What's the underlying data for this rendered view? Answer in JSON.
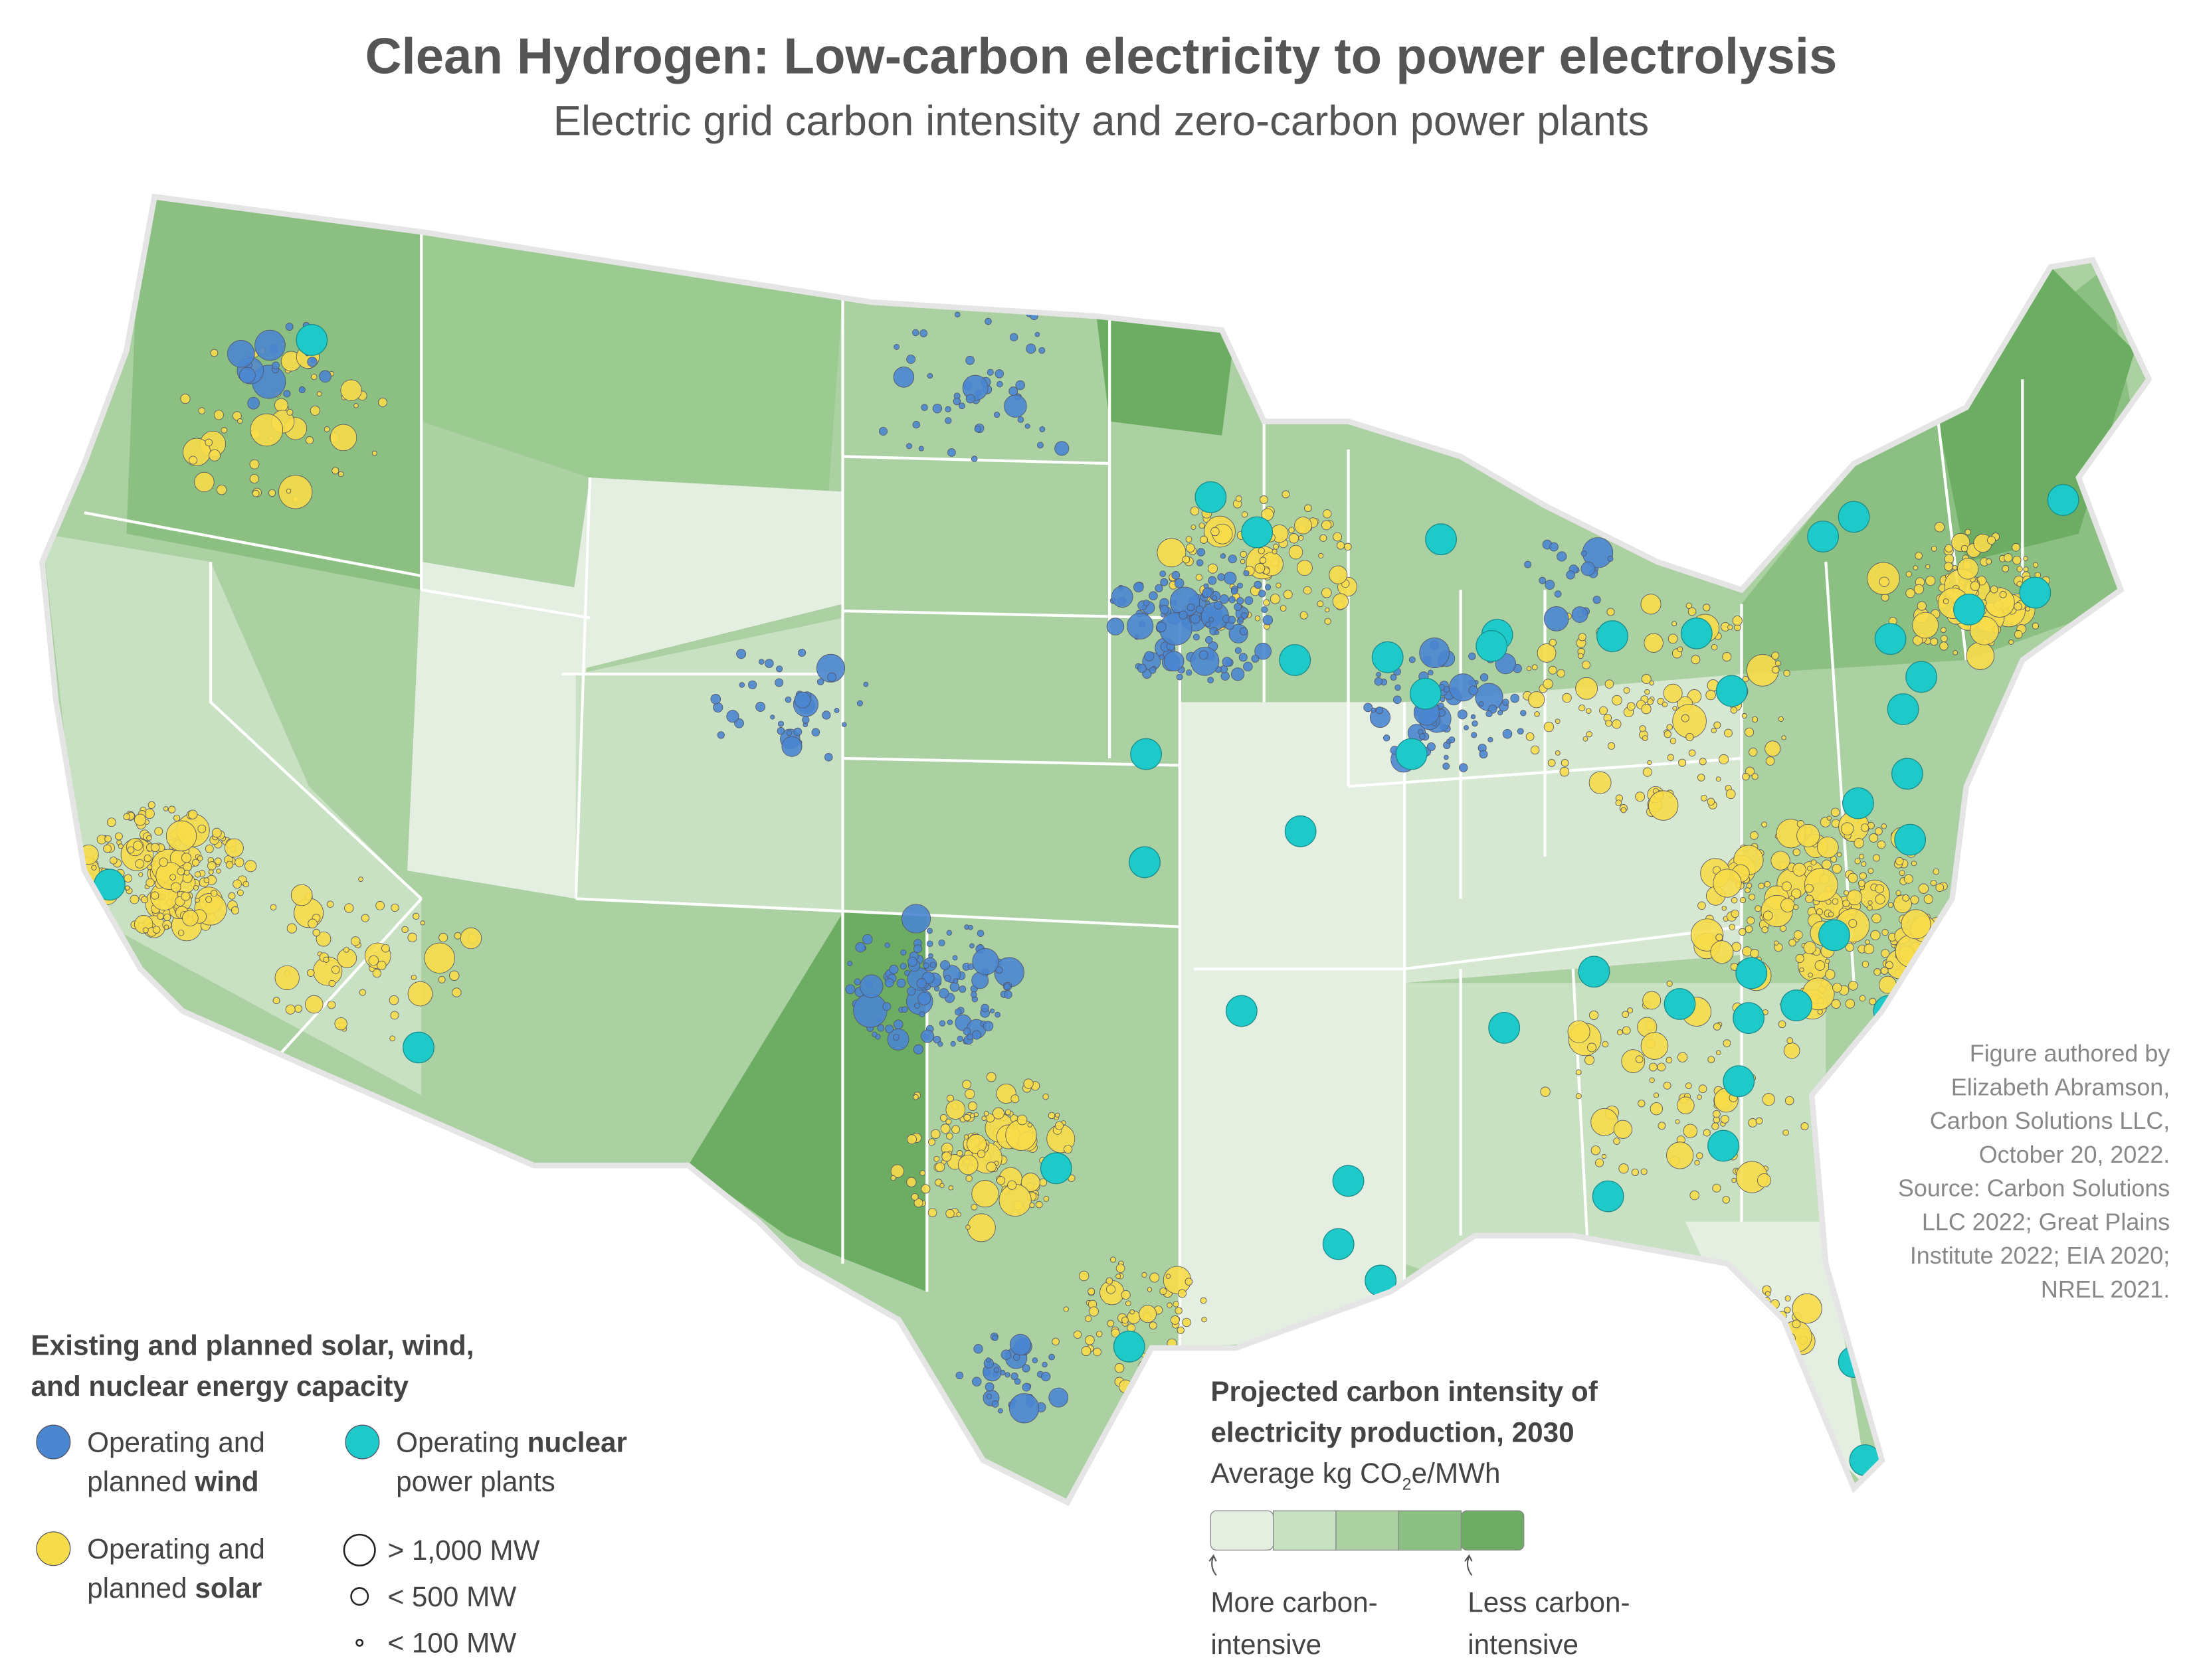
{
  "header": {
    "title": "Clean Hydrogen: Low-carbon electricity to power electrolysis",
    "subtitle": "Electric grid carbon intensity and zero-carbon power plants"
  },
  "capacity_legend": {
    "title": [
      "Existing and planned solar, wind,",
      "and nuclear energy capacity"
    ],
    "items": [
      {
        "color": "#4a86d0",
        "lines": [
          [
            {
              "text": "Operating and"
            }
          ],
          [
            {
              "text": "planned"
            },
            {
              "text": "wind",
              "bold": true
            }
          ]
        ]
      },
      {
        "color": "#1ec9c9",
        "lines": [
          [
            {
              "text": "Operating"
            },
            {
              "text": "nuclear",
              "bold": true
            }
          ],
          [
            {
              "text": "power plants"
            }
          ]
        ]
      },
      {
        "color": "#f7dc4a",
        "lines": [
          [
            {
              "text": "Operating and"
            }
          ],
          [
            {
              "text": "planned"
            },
            {
              "text": "solar",
              "bold": true
            }
          ]
        ]
      }
    ],
    "sizes": [
      "> 1,000 MW",
      "< 500 MW",
      "< 100 MW"
    ]
  },
  "intensity_legend": {
    "title": [
      "Projected carbon intensity of",
      "electricity production, 2030"
    ],
    "unit": [
      {
        "text": "Average kg CO"
      },
      {
        "text": "2",
        "sub": true
      },
      {
        "text": "e/MWh"
      }
    ],
    "colors": [
      "#e4eee1",
      "#c9e1c3",
      "#abd1a2",
      "#8cc082",
      "#6dad63"
    ],
    "low_label": [
      "More carbon-",
      "intensive"
    ],
    "high_label": [
      "Less carbon-",
      "intensive"
    ]
  },
  "credit": [
    "Figure authored by",
    "Elizabeth Abramson,",
    "Carbon Solutions LLC,",
    "October 20, 2022.",
    "Source: Carbon Solutions",
    "LLC 2022; Great Plains",
    "Institute 2022; EIA 2020;",
    "NREL 2021."
  ]
}
